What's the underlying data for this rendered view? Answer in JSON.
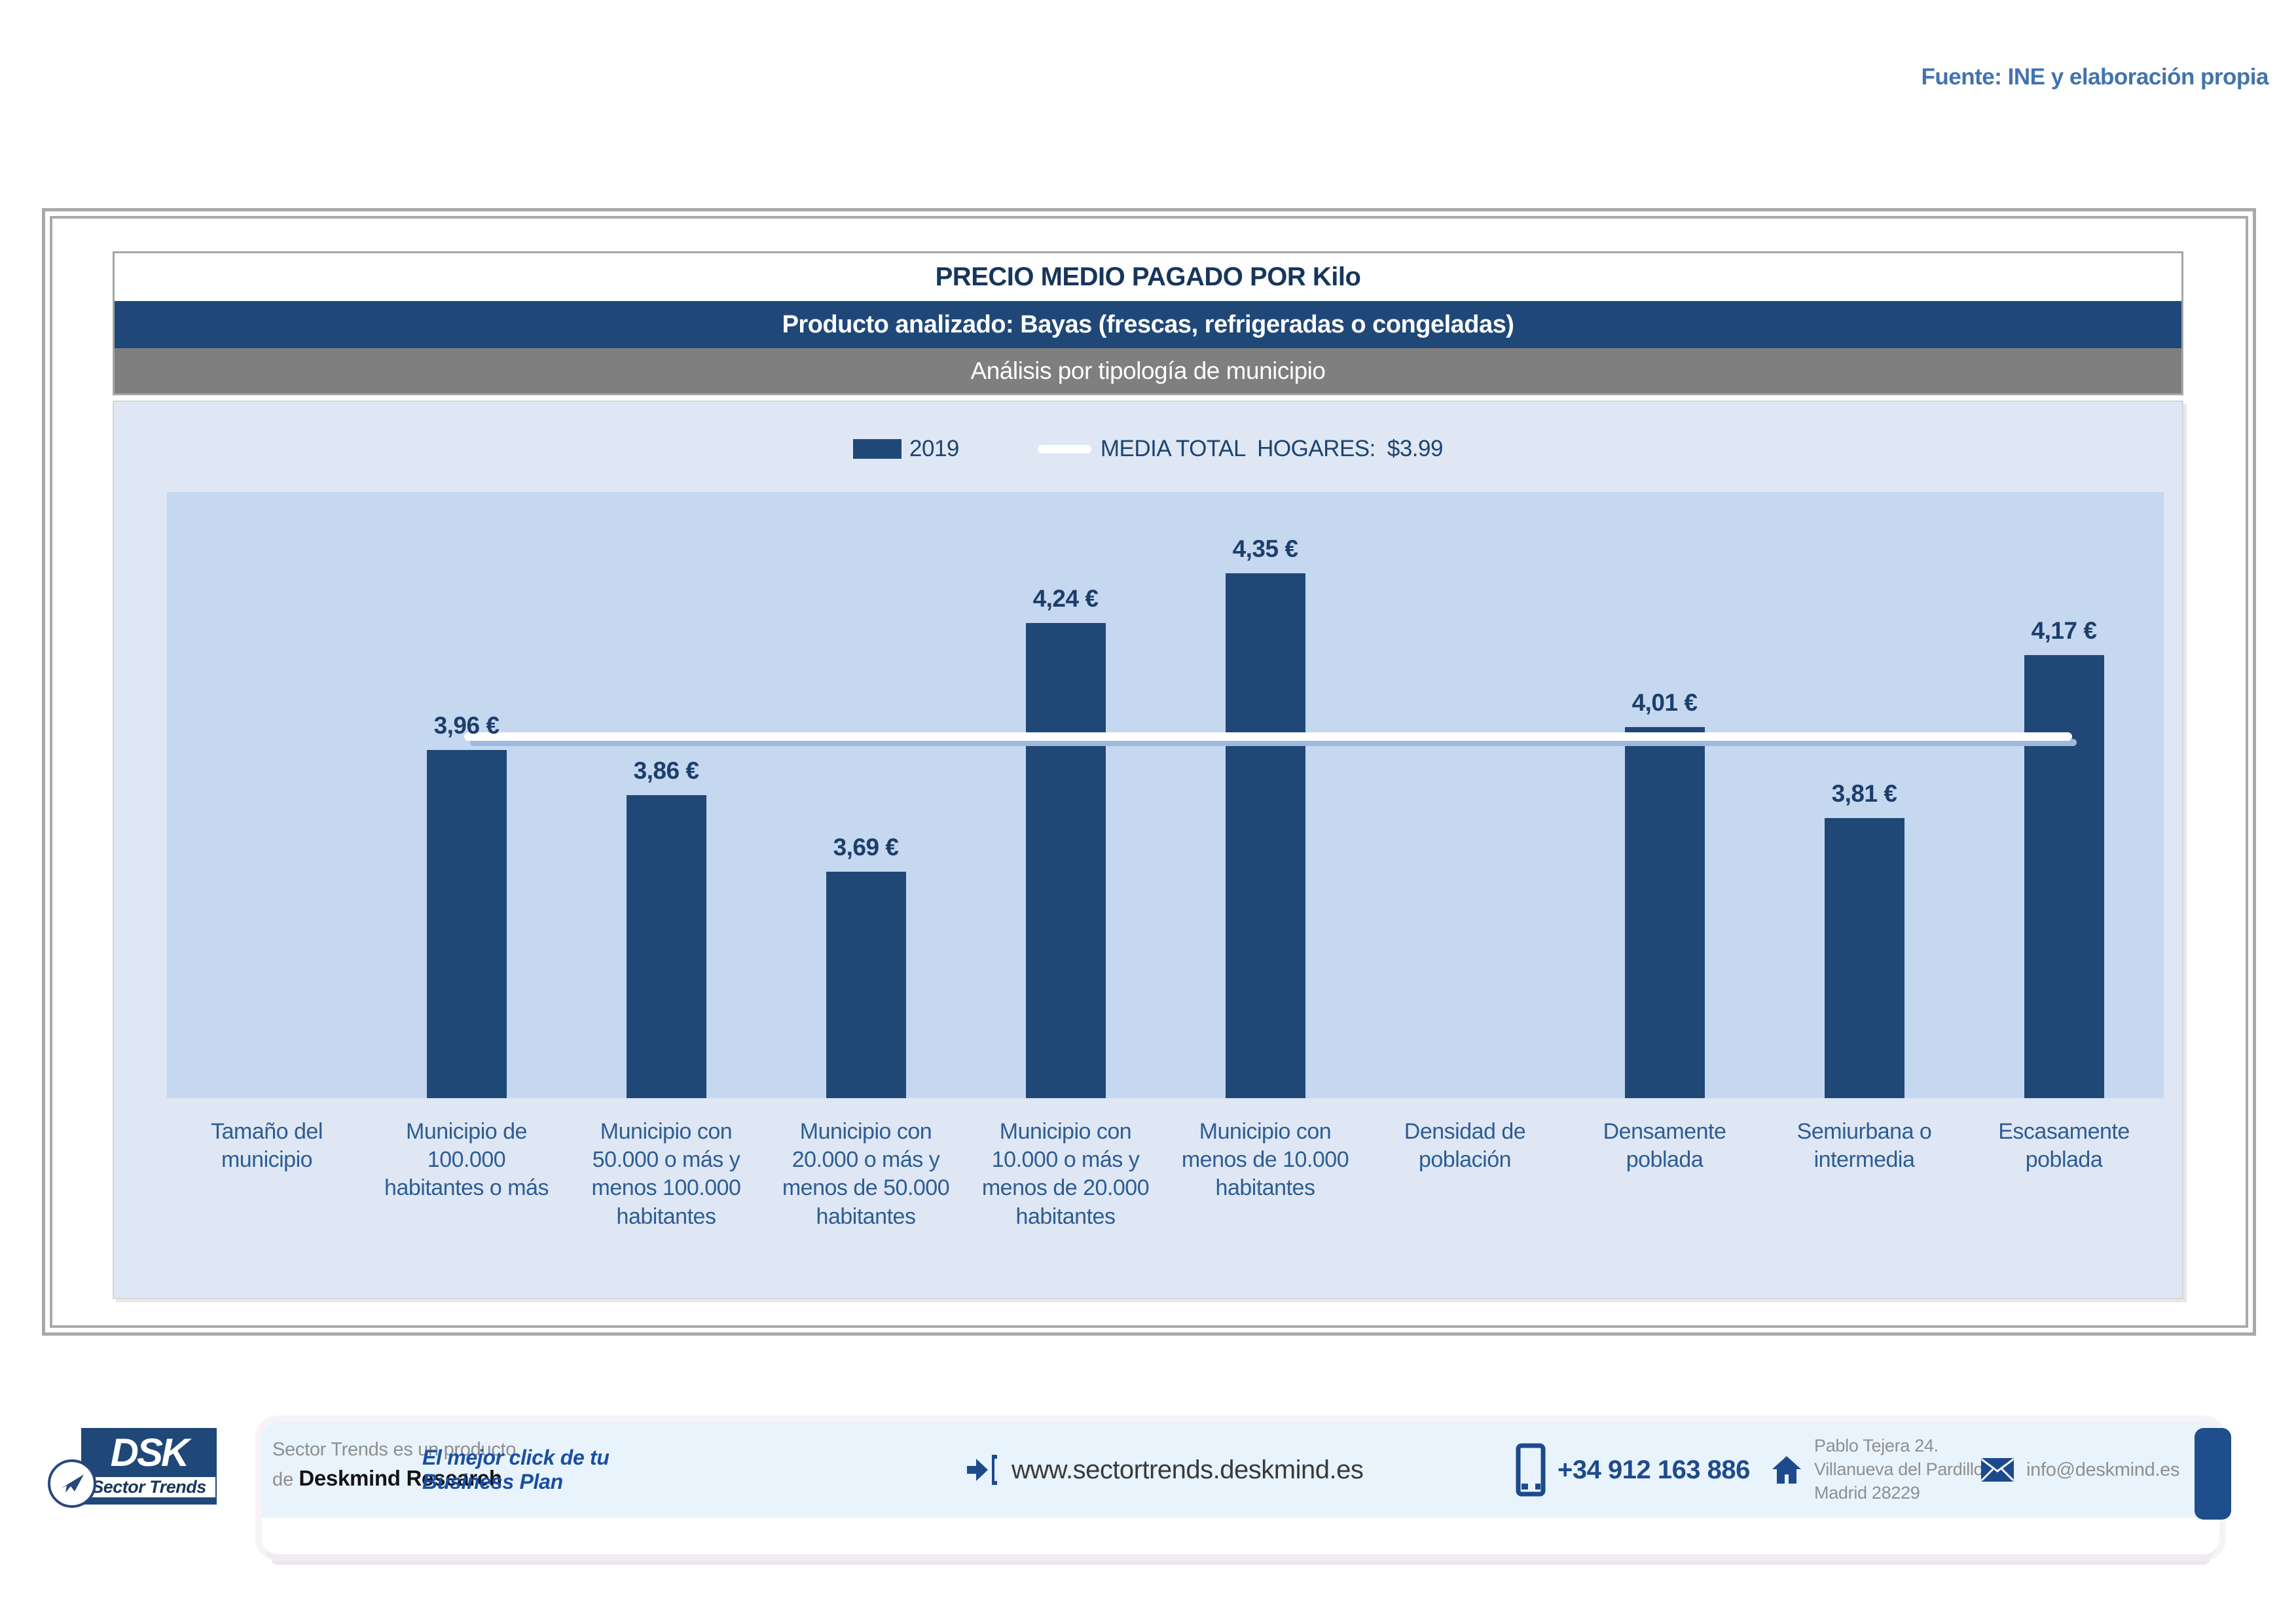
{
  "page": {
    "source_note": "Fuente: INE y elaboración propia"
  },
  "header": {
    "title": "PRECIO MEDIO PAGADO POR Kilo",
    "product_line": "Producto analizado: Bayas (frescas, refrigeradas o congeladas)",
    "analysis_line": "Análisis por tipología de municipio"
  },
  "legend": {
    "series_label": "2019",
    "media_label": "MEDIA TOTAL  HOGARES:",
    "media_value": "$3.99"
  },
  "chart_data": {
    "type": "bar",
    "title": "PRECIO MEDIO PAGADO POR Kilo",
    "subtitle": "Producto analizado: Bayas (frescas, refrigeradas o congeladas)",
    "analysis": "Análisis por tipología de municipio",
    "series_name": "2019",
    "categories": [
      "Tamaño del\nmunicipio",
      "Municipio de\n100.000\nhabitantes o más",
      "Municipio con\n50.000 o más y\nmenos 100.000\nhabitantes",
      "Municipio con\n20.000 o más y\nmenos de 50.000\nhabitantes",
      "Municipio con\n10.000 o más y\nmenos de 20.000\nhabitantes",
      "Municipio con\nmenos de 10.000\nhabitantes",
      "Densidad de\npoblación",
      "Densamente\npoblada",
      "Semiurbana o\nintermedia",
      "Escasamente\npoblada"
    ],
    "values": [
      null,
      3.96,
      3.86,
      3.69,
      4.24,
      4.35,
      null,
      4.01,
      3.81,
      4.17
    ],
    "value_labels": [
      "",
      "3,96 €",
      "3,86 €",
      "3,69 €",
      "4,24 €",
      "4,35 €",
      "",
      "4,01 €",
      "3,81 €",
      "4,17 €"
    ],
    "mean_line": {
      "label": "MEDIA TOTAL HOGARES",
      "value": 3.99,
      "display_value": "$3.99"
    },
    "ylim": [
      3.19,
      4.53
    ],
    "grid": false,
    "legend_position": "top-center",
    "colors": {
      "bar": "#1F4876",
      "plot_bg": "#C5D8F0",
      "chart_bg": "#DEE7F3",
      "mean_line": "#FFFFFF",
      "mean_line_shadow": "#9DB9DD",
      "value_label": "#1C3E6B",
      "category_label": "#2E5C94"
    }
  },
  "footer": {
    "logo": {
      "acronym": "DSK",
      "brand": "Sector Trends"
    },
    "product_note_line1": "Sector Trends es un producto",
    "product_note_line2_prefix": "de ",
    "product_note_line2_bold": "Deskmind Research",
    "slogan": "El mejor click de tu Business Plan",
    "website": "www.sectortrends.deskmind.es",
    "phone": "+34 912 163 886",
    "address_line1": "Pablo Tejera 24.",
    "address_line2": "Villanueva del Pardillo.",
    "address_line3": "Madrid 28229",
    "email": "info@deskmind.es"
  }
}
